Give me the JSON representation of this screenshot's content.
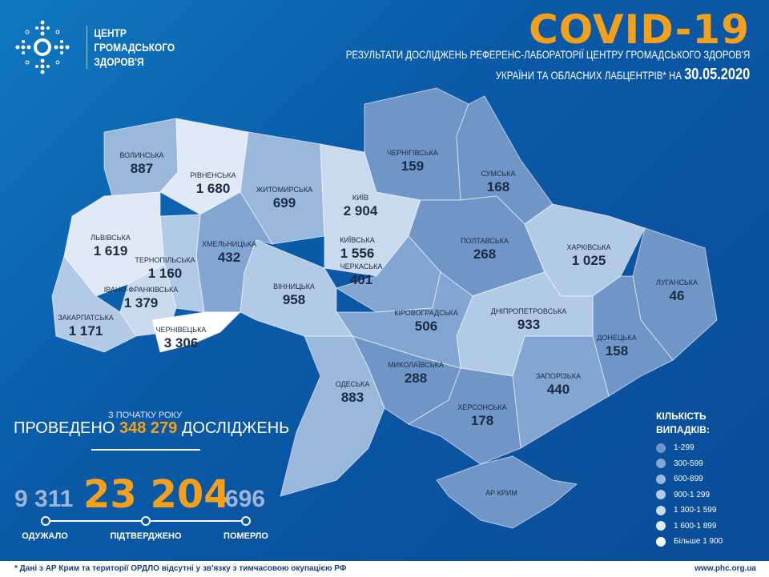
{
  "header": {
    "org_name": [
      "ЦЕНТР",
      "ГРОМАДСЬКОГО",
      "ЗДОРОВ'Я"
    ],
    "title": "COVID-19",
    "subtitle_line1": "РЕЗУЛЬТАТИ ДОСЛІДЖЕНЬ РЕФЕРЕНС-ЛАБОРАТОРІЇ ЦЕНТРУ ГРОМАДСЬКОГО ЗДОРОВ'Я",
    "subtitle_line2": "УКРАЇНИ ТА ОБЛАСНИХ ЛАБЦЕНТРІВ* НА",
    "date": "30.05.2020"
  },
  "colors": {
    "accent": "#f5a01a",
    "background": "#0a5aa8",
    "scale": [
      "#7096c8",
      "#83a5d2",
      "#9ab7dc",
      "#b3cae6",
      "#c9d9ee",
      "#e0e9f6",
      "#ffffff"
    ]
  },
  "regions": [
    {
      "name": "ВОЛИНСЬКА",
      "value": "887",
      "cases": 887
    },
    {
      "name": "РІВНЕНСЬКА",
      "value": "1 680",
      "cases": 1680
    },
    {
      "name": "ЖИТОМИРСЬКА",
      "value": "699",
      "cases": 699
    },
    {
      "name": "КИЇВ",
      "value": "2 904",
      "cases": 2904
    },
    {
      "name": "КИЇВСЬКА",
      "value": "1 556",
      "cases": 1556
    },
    {
      "name": "ЧЕРНІГІВСЬКА",
      "value": "159",
      "cases": 159
    },
    {
      "name": "СУМСЬКА",
      "value": "168",
      "cases": 168
    },
    {
      "name": "ПОЛТАВСЬКА",
      "value": "268",
      "cases": 268
    },
    {
      "name": "ХАРКІВСЬКА",
      "value": "1 025",
      "cases": 1025
    },
    {
      "name": "ЛУГАНСЬКА",
      "value": "46",
      "cases": 46
    },
    {
      "name": "ДОНЕЦЬКА",
      "value": "158",
      "cases": 158
    },
    {
      "name": "ЗАПОРІЗЬКА",
      "value": "440",
      "cases": 440
    },
    {
      "name": "ДНІПРОПЕТРОВСЬКА",
      "value": "933",
      "cases": 933
    },
    {
      "name": "ЧЕРКАСЬКА",
      "value": "401",
      "cases": 401
    },
    {
      "name": "КІРОВОГРАДСЬКА",
      "value": "506",
      "cases": 506
    },
    {
      "name": "МИКОЛАЇВСЬКА",
      "value": "288",
      "cases": 288
    },
    {
      "name": "ХЕРСОНСЬКА",
      "value": "178",
      "cases": 178
    },
    {
      "name": "ОДЕСЬКА",
      "value": "883",
      "cases": 883
    },
    {
      "name": "ВІННИЦЬКА",
      "value": "958",
      "cases": 958
    },
    {
      "name": "ХМЕЛЬНИЦЬКА",
      "value": "432",
      "cases": 432
    },
    {
      "name": "ТЕРНОПІЛЬСЬКА",
      "value": "1 160",
      "cases": 1160
    },
    {
      "name": "ЛЬВІВСЬКА",
      "value": "1 619",
      "cases": 1619
    },
    {
      "name": "ІВАНО-ФРАНКІВСЬКА",
      "value": "1 379",
      "cases": 1379
    },
    {
      "name": "ЗАКАРПАТСЬКА",
      "value": "1 171",
      "cases": 1171
    },
    {
      "name": "ЧЕРНІВЕЦЬКА",
      "value": "3 306",
      "cases": 3306
    },
    {
      "name": "АР КРИМ",
      "value": "",
      "cases": null
    }
  ],
  "stats": {
    "since_label": "З ПОЧАТКУ РОКУ",
    "tests_prefix": "ПРОВЕДЕНО",
    "tests": "348 279",
    "tests_suffix": "ДОСЛІДЖЕНЬ",
    "recovered": "9 311",
    "confirmed": "23 204",
    "deaths": "696",
    "recovered_label": "ОДУЖАЛО",
    "confirmed_label": "ПІДТВЕРДЖЕНО",
    "deaths_label": "ПОМЕРЛО"
  },
  "legend": {
    "title": [
      "КІЛЬКІСТЬ",
      "ВИПАДКІВ:"
    ],
    "items": [
      "1-299",
      "300-599",
      "600-899",
      "900-1 299",
      "1 300-1 599",
      "1 600-1 899",
      "Більше 1 900"
    ]
  },
  "footer": {
    "note": "* Дані з АР Крим та території ОРДЛО відсутні у зв'язку з тимчасовою окупацією РФ",
    "url": "www.phc.org.ua"
  }
}
